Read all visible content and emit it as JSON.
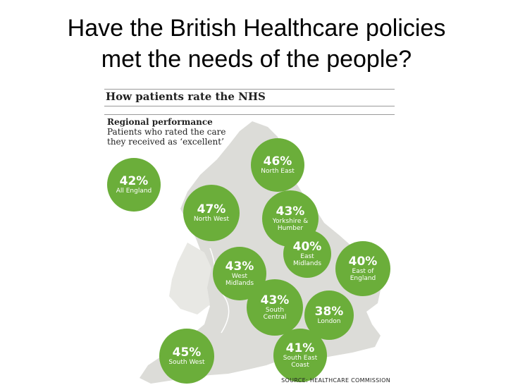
{
  "slide": {
    "title_line1": "Have the British Healthcare policies",
    "title_line2": "met the needs of the people?"
  },
  "graphic": {
    "title": "How patients rate the NHS",
    "section_title": "Regional performance",
    "section_desc": "Patients who rated the care they received as ‘excellent’",
    "source": "SOURCE: HEALTHCARE COMMISSION",
    "colors": {
      "bubble": "#6bae3a",
      "land": "#dcdcd8",
      "rule": "#9a9a9a"
    },
    "regions": [
      {
        "value": "42%",
        "label": "All England"
      },
      {
        "value": "46%",
        "label": "North East"
      },
      {
        "value": "47%",
        "label": "North West"
      },
      {
        "value": "43%",
        "label": "Yorkshire & Humber"
      },
      {
        "value": "40%",
        "label": "East Midlands"
      },
      {
        "value": "43%",
        "label": "West Midlands"
      },
      {
        "value": "40%",
        "label": "East of England"
      },
      {
        "value": "43%",
        "label": "South Central"
      },
      {
        "value": "38%",
        "label": "London"
      },
      {
        "value": "45%",
        "label": "South West"
      },
      {
        "value": "41%",
        "label": "South East Coast"
      }
    ]
  }
}
